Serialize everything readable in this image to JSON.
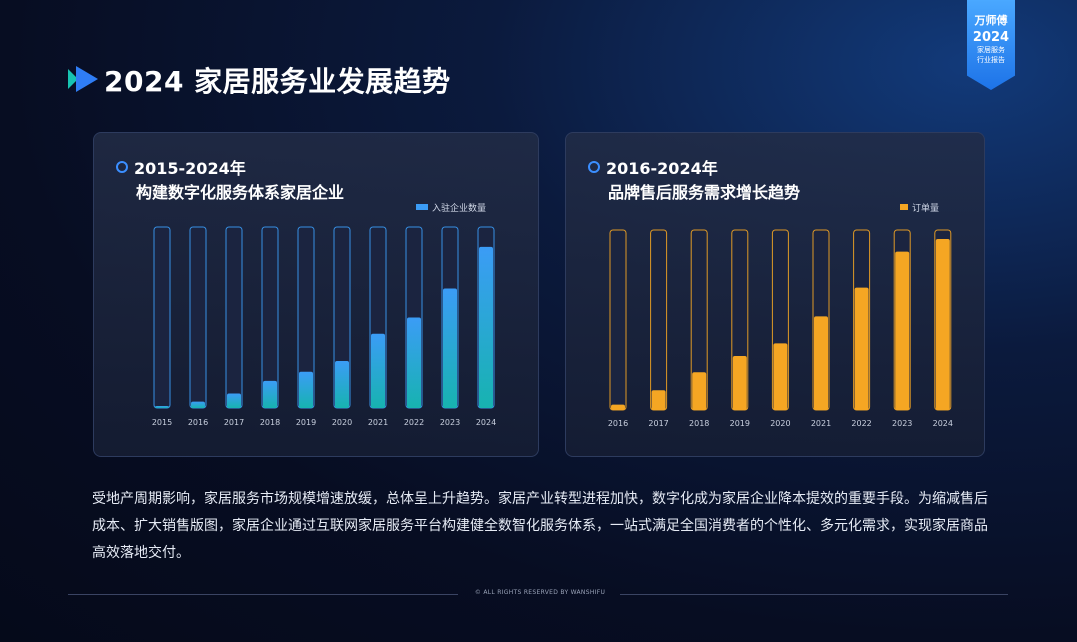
{
  "badge": {
    "brand": "万师傅",
    "year": "2024",
    "line1": "家居服务",
    "line2": "行业报告"
  },
  "page_title": "2024 家居服务业发展趋势",
  "left_card": {
    "title": "2015-2024年",
    "subtitle": "构建数字化服务体系家居企业"
  },
  "right_card": {
    "title": "2016-2024年",
    "subtitle": "品牌售后服务需求增长趋势"
  },
  "description": "受地产周期影响，家居服务市场规模增速放缓，总体呈上升趋势。家居产业转型进程加快，数字化成为家居企业降本提效的重要手段。为缩减售后成本、扩大销售版图，家居企业通过互联网家居服务平台构建健全数智化服务体系，一站式满足全国消费者的个性化、多元化需求，实现家居商品高效落地交付。",
  "footer": "© ALL RIGHTS RESERVED BY WANSHIFU",
  "colors": {
    "blue_top": "#3b9cf6",
    "blue_bottom": "#17b3b0",
    "orange": "#f5a623",
    "accent": "#3b8eff"
  },
  "chart_data": [
    {
      "type": "bar",
      "title": "2015-2024年",
      "subtitle": "构建数字化服务体系家居企业",
      "categories": [
        "2015",
        "2016",
        "2017",
        "2018",
        "2019",
        "2020",
        "2021",
        "2022",
        "2023",
        "2024"
      ],
      "series": [
        {
          "name": "入驻企业数量",
          "values": [
            1,
            3.5,
            8,
            15,
            20,
            26,
            41,
            50,
            66,
            89
          ]
        }
      ],
      "ylim": [
        0,
        100
      ],
      "legend": "top-right"
    },
    {
      "type": "bar",
      "title": "2016-2024年",
      "subtitle": "品牌售后服务需求增长趋势",
      "categories": [
        "2016",
        "2017",
        "2018",
        "2019",
        "2020",
        "2021",
        "2022",
        "2023",
        "2024"
      ],
      "series": [
        {
          "name": "订单量",
          "values": [
            3,
            11,
            21,
            30,
            37,
            52,
            68,
            88,
            95
          ]
        }
      ],
      "ylim": [
        0,
        100
      ],
      "legend": "top-right"
    }
  ]
}
